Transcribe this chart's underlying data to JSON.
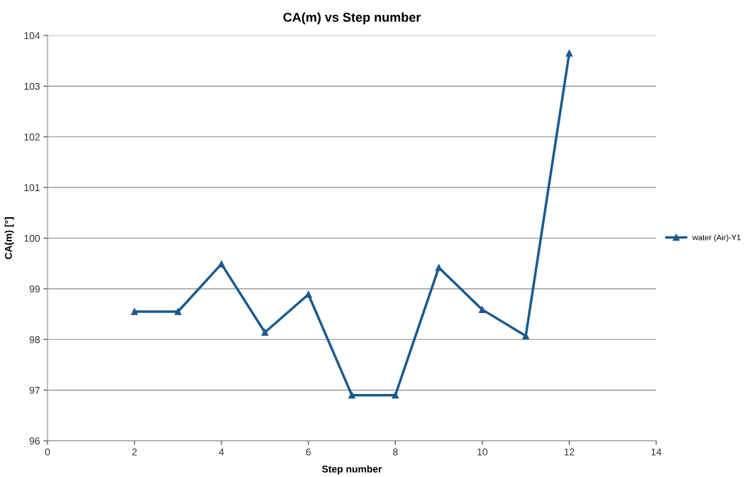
{
  "chart_data": {
    "type": "line",
    "title": "CA(m) vs Step number",
    "xlabel": "Step number",
    "ylabel": "CA(m) [°]",
    "x": [
      2,
      3,
      4,
      5,
      6,
      7,
      8,
      9,
      10,
      11,
      12
    ],
    "series": [
      {
        "name": "water (Air)-Y1",
        "color": "#1b5a8e",
        "values": [
          98.55,
          98.55,
          99.49,
          98.14,
          98.89,
          96.9,
          96.9,
          99.42,
          98.59,
          98.07,
          103.65
        ]
      }
    ],
    "xlim": [
      0,
      14
    ],
    "xticks": [
      0,
      2,
      4,
      6,
      8,
      10,
      12,
      14
    ],
    "ylim": [
      96,
      104
    ],
    "yticks": [
      96,
      97,
      98,
      99,
      100,
      101,
      102,
      103,
      104
    ],
    "grid": "y",
    "legend": "right",
    "marker": "triangle",
    "line_style": "solid"
  }
}
